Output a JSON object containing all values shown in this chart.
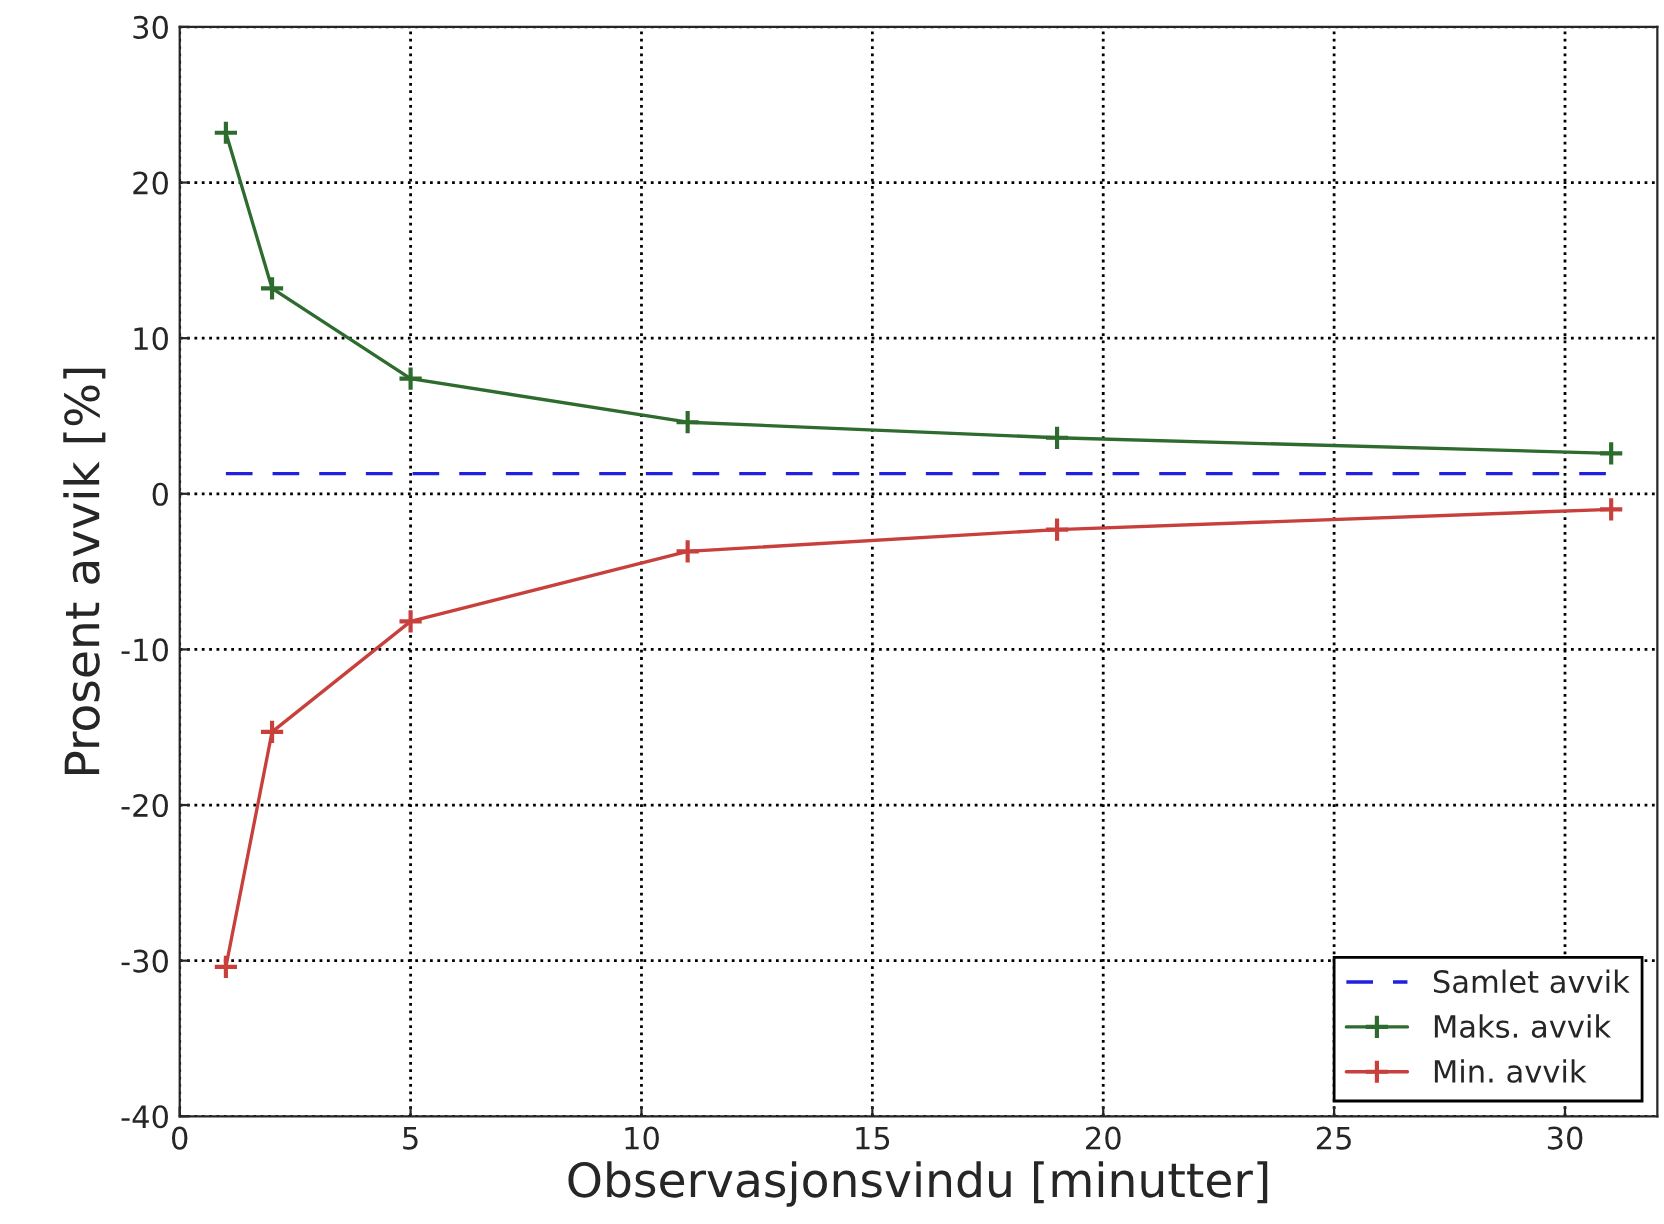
{
  "chart_data": {
    "type": "line",
    "xlabel": "Observasjonsvindu [minutter]",
    "ylabel": "Prosent avvik [%]",
    "x": [
      1,
      2,
      5,
      11,
      19,
      31
    ],
    "series": [
      {
        "name": "Samlet avvik",
        "color": "#2020e0",
        "values": [
          1.3,
          1.3,
          1.3,
          1.3,
          1.3,
          1.3
        ],
        "line_style": "dashed",
        "marker": "none"
      },
      {
        "name": "Maks. avvik",
        "color": "#2e6b2e",
        "values": [
          23.2,
          13.2,
          7.4,
          4.6,
          3.6,
          2.6
        ],
        "line_style": "solid",
        "marker": "cross"
      },
      {
        "name": "Min. avvik",
        "color": "#c8403c",
        "values": [
          -30.4,
          -15.3,
          -8.2,
          -3.7,
          -2.3,
          -1.0
        ],
        "line_style": "solid",
        "marker": "cross"
      }
    ],
    "xlim": [
      0,
      32
    ],
    "xticks": [
      0,
      5,
      10,
      15,
      20,
      25,
      30
    ],
    "ylim": [
      -40,
      30
    ],
    "yticks": [
      -40,
      -30,
      -20,
      -10,
      0,
      10,
      20,
      30
    ],
    "grid": true,
    "legend": "bottom right"
  }
}
